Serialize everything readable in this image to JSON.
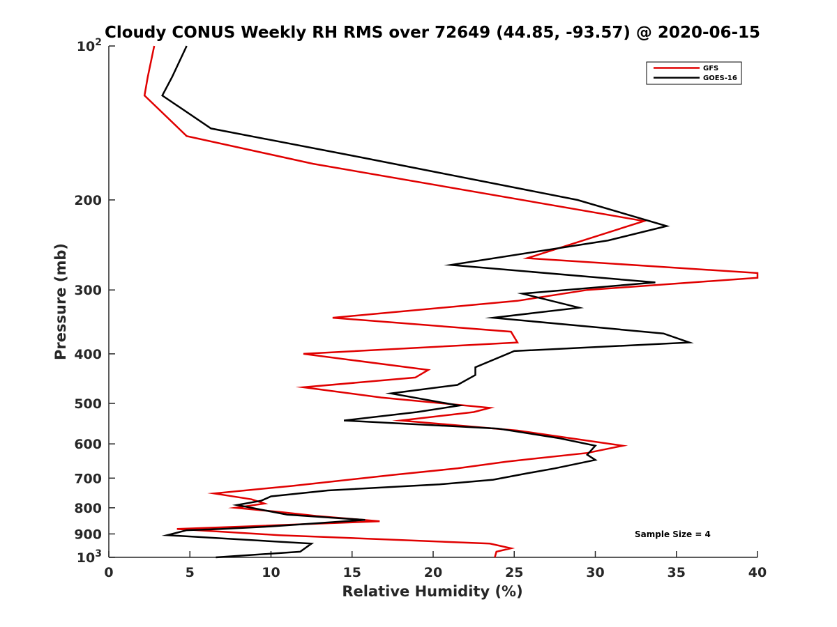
{
  "chart_data": {
    "type": "line",
    "title": "Cloudy CONUS Weekly RH RMS over 72649 (44.85, -93.57) @ 2020-06-15",
    "xlabel": "Relative Humidity (%)",
    "ylabel": "Pressure (mb)",
    "xlim": [
      0,
      40
    ],
    "ylim": [
      100,
      1000
    ],
    "y_scale": "log",
    "y_reversed": true,
    "grid": false,
    "legend_position": "top-right",
    "x_ticks": [
      0,
      5,
      10,
      15,
      20,
      25,
      30,
      35,
      40
    ],
    "x_tick_labels": [
      "0",
      "5",
      "10",
      "15",
      "20",
      "25",
      "30",
      "35",
      "40"
    ],
    "y_ticks": [
      100,
      200,
      300,
      400,
      500,
      600,
      700,
      800,
      900,
      1000
    ],
    "y_tick_labels": [
      {
        "base": "10",
        "exp": "2"
      },
      {
        "base": "200"
      },
      {
        "base": "300"
      },
      {
        "base": "400"
      },
      {
        "base": "500"
      },
      {
        "base": "600"
      },
      {
        "base": "700"
      },
      {
        "base": "800"
      },
      {
        "base": "900"
      },
      {
        "base": "10",
        "exp": "3"
      }
    ],
    "annotation": "Sample Size = 4",
    "series": [
      {
        "name": "GFS",
        "color": "#e00000",
        "points": [
          [
            2.8,
            100
          ],
          [
            2.4,
            115
          ],
          [
            2.2,
            125
          ],
          [
            4.8,
            150
          ],
          [
            12.6,
            170
          ],
          [
            33.0,
            220
          ],
          [
            25.8,
            260
          ],
          [
            40.0,
            278
          ],
          [
            40.0,
            284
          ],
          [
            29.5,
            300
          ],
          [
            25.2,
            315
          ],
          [
            13.8,
            340
          ],
          [
            24.8,
            362
          ],
          [
            25.2,
            380
          ],
          [
            12.0,
            400
          ],
          [
            19.7,
            430
          ],
          [
            18.9,
            445
          ],
          [
            12.0,
            465
          ],
          [
            16.8,
            487
          ],
          [
            23.5,
            510
          ],
          [
            22.5,
            520
          ],
          [
            18.0,
            540
          ],
          [
            25.2,
            565
          ],
          [
            28.5,
            585
          ],
          [
            31.7,
            605
          ],
          [
            29.5,
            625
          ],
          [
            24.5,
            650
          ],
          [
            21.5,
            670
          ],
          [
            17.5,
            690
          ],
          [
            11.3,
            725
          ],
          [
            6.5,
            750
          ],
          [
            8.8,
            770
          ],
          [
            9.6,
            785
          ],
          [
            7.8,
            800
          ],
          [
            10.5,
            815
          ],
          [
            12.8,
            830
          ],
          [
            16.7,
            850
          ],
          [
            8.5,
            870
          ],
          [
            4.2,
            880
          ],
          [
            10.5,
            905
          ],
          [
            23.5,
            940
          ],
          [
            24.8,
            960
          ],
          [
            23.9,
            975
          ],
          [
            23.8,
            1000
          ]
        ]
      },
      {
        "name": "GOES-16",
        "color": "#000000",
        "points": [
          [
            4.8,
            100
          ],
          [
            3.9,
            115
          ],
          [
            3.3,
            125
          ],
          [
            6.3,
            145
          ],
          [
            15.5,
            165
          ],
          [
            28.9,
            200
          ],
          [
            34.4,
            225
          ],
          [
            30.8,
            240
          ],
          [
            21.1,
            268
          ],
          [
            33.7,
            290
          ],
          [
            25.5,
            305
          ],
          [
            29.0,
            325
          ],
          [
            23.7,
            340
          ],
          [
            34.2,
            365
          ],
          [
            35.8,
            380
          ],
          [
            25.0,
            395
          ],
          [
            22.6,
            425
          ],
          [
            22.6,
            440
          ],
          [
            21.5,
            460
          ],
          [
            17.4,
            478
          ],
          [
            21.6,
            505
          ],
          [
            19.0,
            520
          ],
          [
            14.5,
            540
          ],
          [
            24.0,
            560
          ],
          [
            27.8,
            585
          ],
          [
            30.0,
            605
          ],
          [
            29.5,
            630
          ],
          [
            30.0,
            645
          ],
          [
            27.5,
            670
          ],
          [
            25.8,
            685
          ],
          [
            23.7,
            705
          ],
          [
            20.4,
            720
          ],
          [
            13.5,
            740
          ],
          [
            10.0,
            760
          ],
          [
            9.4,
            775
          ],
          [
            7.9,
            790
          ],
          [
            11.0,
            825
          ],
          [
            15.8,
            845
          ],
          [
            10.0,
            870
          ],
          [
            7.0,
            880
          ],
          [
            4.8,
            885
          ],
          [
            3.6,
            905
          ],
          [
            12.5,
            940
          ],
          [
            11.8,
            975
          ],
          [
            6.6,
            1000
          ]
        ]
      }
    ]
  }
}
